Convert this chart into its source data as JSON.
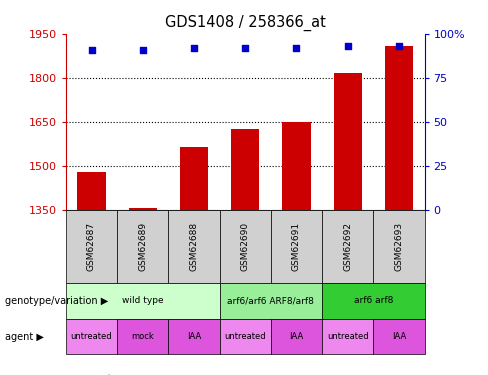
{
  "title": "GDS1408 / 258366_at",
  "samples": [
    "GSM62687",
    "GSM62689",
    "GSM62688",
    "GSM62690",
    "GSM62691",
    "GSM62692",
    "GSM62693"
  ],
  "bar_values": [
    1480,
    1358,
    1565,
    1625,
    1648,
    1815,
    1910
  ],
  "percentile_values": [
    91,
    91,
    92,
    92,
    92,
    93,
    93
  ],
  "ylim_left": [
    1350,
    1950
  ],
  "ylim_right": [
    0,
    100
  ],
  "yticks_left": [
    1350,
    1500,
    1650,
    1800,
    1950
  ],
  "yticks_right": [
    0,
    25,
    50,
    75,
    100
  ],
  "bar_color": "#cc0000",
  "dot_color": "#0000cc",
  "genotype_groups": [
    {
      "label": "wild type",
      "cols": [
        0,
        1,
        2
      ],
      "color": "#ccffcc"
    },
    {
      "label": "arf6/arf6 ARF8/arf8",
      "cols": [
        3,
        4
      ],
      "color": "#99ee99"
    },
    {
      "label": "arf6 arf8",
      "cols": [
        5,
        6
      ],
      "color": "#33cc33"
    }
  ],
  "agent_items": [
    {
      "label": "untreated",
      "col": 0,
      "color": "#ee88ee"
    },
    {
      "label": "mock",
      "col": 1,
      "color": "#dd55dd"
    },
    {
      "label": "IAA",
      "col": 2,
      "color": "#dd55dd"
    },
    {
      "label": "untreated",
      "col": 3,
      "color": "#ee88ee"
    },
    {
      "label": "IAA",
      "col": 4,
      "color": "#dd55dd"
    },
    {
      "label": "untreated",
      "col": 5,
      "color": "#ee88ee"
    },
    {
      "label": "IAA",
      "col": 6,
      "color": "#dd55dd"
    }
  ],
  "left_axis_color": "#cc0000",
  "right_axis_color": "#0000cc",
  "sample_box_color": "#d0d0d0",
  "legend_count_color": "#cc0000",
  "legend_pct_color": "#0000cc"
}
